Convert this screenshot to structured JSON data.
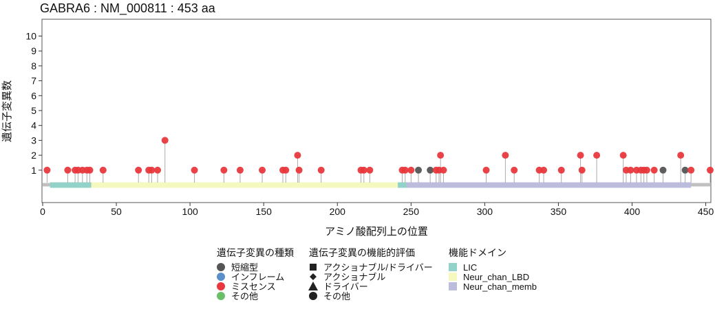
{
  "chart_data": {
    "type": "lollipop",
    "title": "GABRA6 : NM_000811 : 453 aa",
    "xlabel": "アミノ酸配列上の位置",
    "ylabel": "遺伝子変異数",
    "xlim": [
      0,
      453
    ],
    "ylim": [
      0,
      11
    ],
    "x_ticks": [
      0,
      50,
      100,
      150,
      200,
      250,
      300,
      350,
      400,
      450
    ],
    "y_ticks": [
      1,
      2,
      3,
      4,
      5,
      6,
      7,
      8,
      9,
      10
    ],
    "grid": false,
    "colors": {
      "truncating": "#555555",
      "inframe": "#5b8fc9",
      "missense": "#e8383d",
      "other": "#6abf69",
      "protein_bar": "#c0c0c0",
      "stem": "#aaaaaa",
      "LIC": "#93d2c8",
      "Neur_chan_LBD": "#f6f9bf",
      "Neur_chan_memb": "#bcbddc"
    },
    "domains": [
      {
        "name": "LIC",
        "start": 5,
        "end": 33,
        "color_key": "LIC"
      },
      {
        "name": "Neur_chan_LBD",
        "start": 33,
        "end": 241,
        "color_key": "Neur_chan_LBD"
      },
      {
        "name": "LIC",
        "start": 241,
        "end": 247,
        "color_key": "LIC"
      },
      {
        "name": "Neur_chan_memb",
        "start": 247,
        "end": 440,
        "color_key": "Neur_chan_memb"
      }
    ],
    "mutations": [
      {
        "pos": 3,
        "count": 1,
        "type": "missense"
      },
      {
        "pos": 17,
        "count": 1,
        "type": "missense"
      },
      {
        "pos": 22,
        "count": 1,
        "type": "missense"
      },
      {
        "pos": 24,
        "count": 1,
        "type": "missense"
      },
      {
        "pos": 27,
        "count": 1,
        "type": "missense"
      },
      {
        "pos": 30,
        "count": 1,
        "type": "missense"
      },
      {
        "pos": 32,
        "count": 1,
        "type": "missense"
      },
      {
        "pos": 41,
        "count": 1,
        "type": "missense"
      },
      {
        "pos": 65,
        "count": 1,
        "type": "missense"
      },
      {
        "pos": 72,
        "count": 1,
        "type": "missense"
      },
      {
        "pos": 74,
        "count": 1,
        "type": "missense"
      },
      {
        "pos": 78,
        "count": 1,
        "type": "missense"
      },
      {
        "pos": 83,
        "count": 3,
        "type": "missense"
      },
      {
        "pos": 103,
        "count": 1,
        "type": "missense"
      },
      {
        "pos": 123,
        "count": 1,
        "type": "missense"
      },
      {
        "pos": 134,
        "count": 1,
        "type": "missense"
      },
      {
        "pos": 149,
        "count": 1,
        "type": "missense"
      },
      {
        "pos": 163,
        "count": 1,
        "type": "missense"
      },
      {
        "pos": 165,
        "count": 1,
        "type": "missense"
      },
      {
        "pos": 173,
        "count": 2,
        "type": "missense"
      },
      {
        "pos": 174,
        "count": 1,
        "type": "missense"
      },
      {
        "pos": 189,
        "count": 1,
        "type": "missense"
      },
      {
        "pos": 216,
        "count": 1,
        "type": "missense"
      },
      {
        "pos": 218,
        "count": 1,
        "type": "missense"
      },
      {
        "pos": 222,
        "count": 1,
        "type": "missense"
      },
      {
        "pos": 244,
        "count": 1,
        "type": "missense"
      },
      {
        "pos": 246,
        "count": 1,
        "type": "missense"
      },
      {
        "pos": 250,
        "count": 1,
        "type": "missense"
      },
      {
        "pos": 255,
        "count": 1,
        "type": "truncating"
      },
      {
        "pos": 263,
        "count": 1,
        "type": "truncating"
      },
      {
        "pos": 267,
        "count": 1,
        "type": "missense"
      },
      {
        "pos": 269,
        "count": 1,
        "type": "missense"
      },
      {
        "pos": 270,
        "count": 2,
        "type": "missense"
      },
      {
        "pos": 272,
        "count": 1,
        "type": "missense"
      },
      {
        "pos": 301,
        "count": 1,
        "type": "missense"
      },
      {
        "pos": 314,
        "count": 2,
        "type": "missense"
      },
      {
        "pos": 320,
        "count": 1,
        "type": "missense"
      },
      {
        "pos": 337,
        "count": 1,
        "type": "missense"
      },
      {
        "pos": 340,
        "count": 1,
        "type": "missense"
      },
      {
        "pos": 352,
        "count": 1,
        "type": "missense"
      },
      {
        "pos": 365,
        "count": 2,
        "type": "missense"
      },
      {
        "pos": 366,
        "count": 1,
        "type": "missense"
      },
      {
        "pos": 376,
        "count": 2,
        "type": "missense"
      },
      {
        "pos": 394,
        "count": 2,
        "type": "missense"
      },
      {
        "pos": 396,
        "count": 1,
        "type": "missense"
      },
      {
        "pos": 399,
        "count": 1,
        "type": "missense"
      },
      {
        "pos": 403,
        "count": 1,
        "type": "missense"
      },
      {
        "pos": 406,
        "count": 1,
        "type": "missense"
      },
      {
        "pos": 408,
        "count": 1,
        "type": "missense"
      },
      {
        "pos": 410,
        "count": 1,
        "type": "missense"
      },
      {
        "pos": 415,
        "count": 1,
        "type": "missense"
      },
      {
        "pos": 421,
        "count": 1,
        "type": "truncating"
      },
      {
        "pos": 433,
        "count": 2,
        "type": "missense"
      },
      {
        "pos": 436,
        "count": 1,
        "type": "truncating"
      },
      {
        "pos": 440,
        "count": 1,
        "type": "missense"
      },
      {
        "pos": 453,
        "count": 1,
        "type": "missense"
      }
    ],
    "legend": {
      "placement": "bottom",
      "mutation_type": {
        "title": "遺伝子変異の種類",
        "items": [
          {
            "label": "短縮型",
            "color_key": "truncating"
          },
          {
            "label": "インフレーム",
            "color_key": "inframe"
          },
          {
            "label": "ミスセンス",
            "color_key": "missense"
          },
          {
            "label": "その他",
            "color_key": "other"
          }
        ]
      },
      "functional": {
        "title": "遺伝子変異の機能的評価",
        "items": [
          {
            "label": "アクショナブル/ドライバー",
            "shape": "square"
          },
          {
            "label": "アクショナブル",
            "shape": "diamond"
          },
          {
            "label": "ドライバー",
            "shape": "triangle"
          },
          {
            "label": "その他",
            "shape": "circle"
          }
        ]
      },
      "domain": {
        "title": "機能ドメイン",
        "items": [
          {
            "label": "LIC",
            "color_key": "LIC"
          },
          {
            "label": "Neur_chan_LBD",
            "color_key": "Neur_chan_LBD"
          },
          {
            "label": "Neur_chan_memb",
            "color_key": "Neur_chan_memb"
          }
        ]
      }
    }
  }
}
